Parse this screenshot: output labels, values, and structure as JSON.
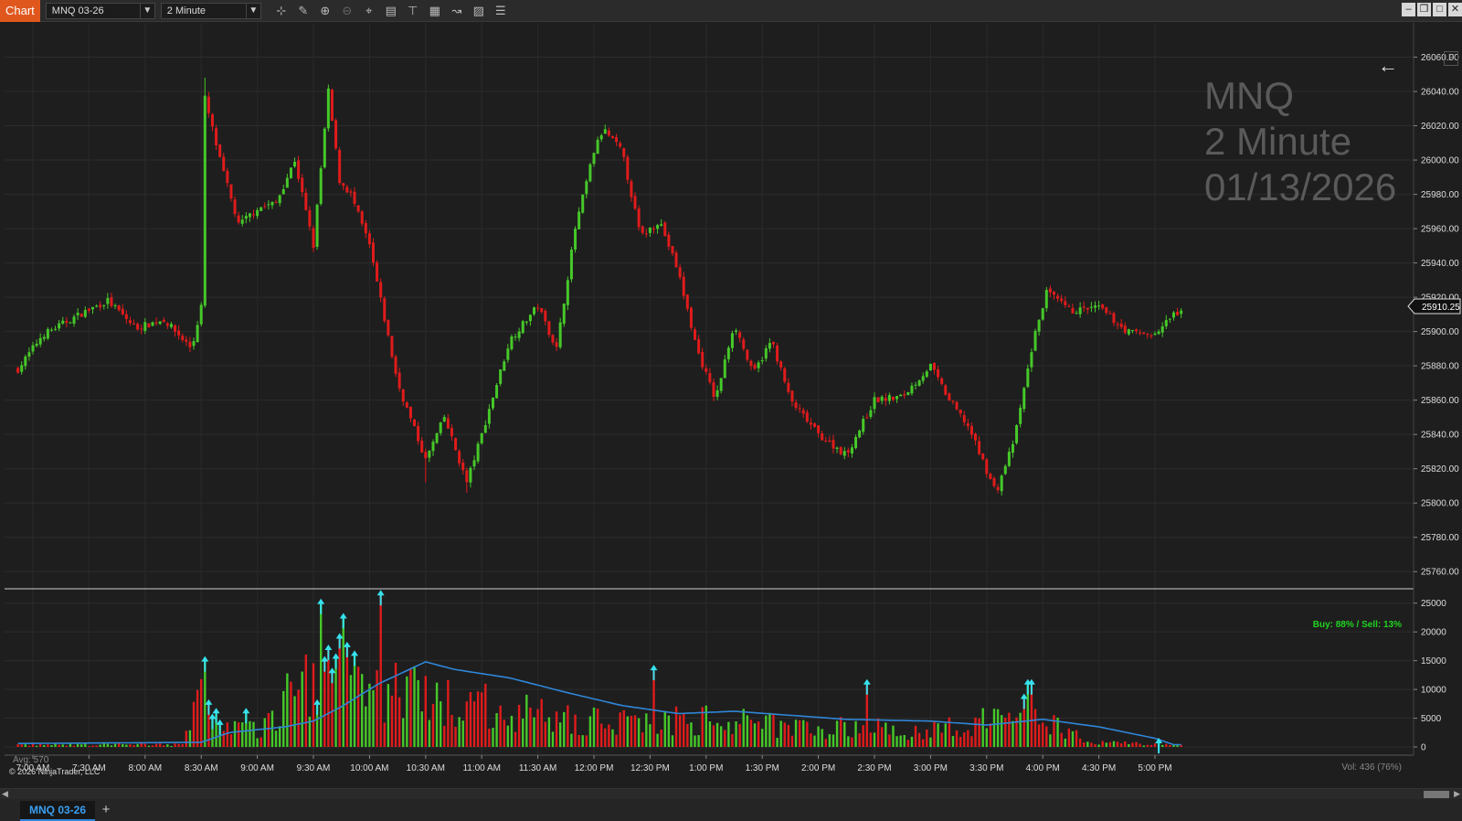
{
  "toolbar": {
    "app_label": "Chart",
    "instrument": "MNQ 03-26",
    "interval": "2 Minute",
    "tools": [
      "bar-type-icon",
      "pencil-icon",
      "zoom-in-icon",
      "zoom-out-icon",
      "crosshair-icon",
      "data-box-icon",
      "properties-icon",
      "strategies-icon",
      "indicators-icon",
      "templates-icon",
      "list-icon"
    ],
    "window_buttons": [
      "minimize",
      "restore",
      "maximize",
      "close"
    ]
  },
  "watermark": {
    "symbol": "MNQ",
    "interval": "2 Minute",
    "date": "01/13/2026"
  },
  "price_panel": {
    "last_price": "25910.25",
    "y_ticks": [
      "26060.00",
      "26040.00",
      "26020.00",
      "26000.00",
      "25980.00",
      "25960.00",
      "25940.00",
      "25920.00",
      "25900.00",
      "25880.00",
      "25860.00",
      "25840.00",
      "25820.00",
      "25800.00",
      "25780.00",
      "25760.00"
    ],
    "f_label": "F"
  },
  "volume_panel": {
    "buy_sell": "Buy: 88% / Sell: 13%",
    "vol": "Vol: 436 (76%)",
    "avg": "Avg: 570",
    "y_ticks": [
      "25000",
      "20000",
      "15000",
      "10000",
      "5000",
      "0"
    ]
  },
  "x_ticks": [
    "7:00 AM",
    "7:30 AM",
    "8:00 AM",
    "8:30 AM",
    "9:00 AM",
    "9:30 AM",
    "10:00 AM",
    "10:30 AM",
    "11:00 AM",
    "11:30 AM",
    "12:00 PM",
    "12:30 PM",
    "1:00 PM",
    "1:30 PM",
    "2:00 PM",
    "2:30 PM",
    "3:00 PM",
    "3:30 PM",
    "4:00 PM",
    "4:30 PM",
    "5:00 PM"
  ],
  "copyright": "© 2026 NinjaTrader, LLC",
  "bottom_tabs": {
    "active": "MNQ 03-26",
    "add": "+"
  },
  "colors": {
    "up": "#46c829",
    "down": "#e01b1b",
    "avg_line": "#2f86d8",
    "arrow": "#35e2ee",
    "accent": "#e0571d"
  },
  "chart_data": {
    "type": "candlestick",
    "interval_minutes": 2,
    "time_range": [
      "6:52 AM",
      "5:14 PM"
    ],
    "price_range": [
      25750,
      26080
    ],
    "volume_range": [
      0,
      27500
    ],
    "close_path": [
      {
        "t": "6:52 AM",
        "p": 25878
      },
      {
        "t": "7:05 AM",
        "p": 25898
      },
      {
        "t": "7:25 AM",
        "p": 25910
      },
      {
        "t": "7:40 AM",
        "p": 25918
      },
      {
        "t": "7:55 AM",
        "p": 25902
      },
      {
        "t": "8:10 AM",
        "p": 25907
      },
      {
        "t": "8:25 AM",
        "p": 25890
      },
      {
        "t": "8:30 AM",
        "p": 25915
      },
      {
        "t": "8:32 AM",
        "p": 26036
      },
      {
        "t": "8:40 AM",
        "p": 26000
      },
      {
        "t": "8:50 AM",
        "p": 25962
      },
      {
        "t": "9:00 AM",
        "p": 25972
      },
      {
        "t": "9:10 AM",
        "p": 25975
      },
      {
        "t": "9:20 AM",
        "p": 26000
      },
      {
        "t": "9:30 AM",
        "p": 25950
      },
      {
        "t": "9:38 AM",
        "p": 26040
      },
      {
        "t": "9:44 AM",
        "p": 25988
      },
      {
        "t": "9:50 AM",
        "p": 25980
      },
      {
        "t": "10:00 AM",
        "p": 25950
      },
      {
        "t": "10:15 AM",
        "p": 25870
      },
      {
        "t": "10:30 AM",
        "p": 25825
      },
      {
        "t": "10:40 AM",
        "p": 25850
      },
      {
        "t": "10:52 AM",
        "p": 25812
      },
      {
        "t": "11:00 AM",
        "p": 25840
      },
      {
        "t": "11:15 AM",
        "p": 25895
      },
      {
        "t": "11:30 AM",
        "p": 25915
      },
      {
        "t": "11:40 AM",
        "p": 25890
      },
      {
        "t": "11:50 AM",
        "p": 25960
      },
      {
        "t": "12:00 PM",
        "p": 26005
      },
      {
        "t": "12:05 PM",
        "p": 26018
      },
      {
        "t": "12:15 PM",
        "p": 26005
      },
      {
        "t": "12:25 PM",
        "p": 25955
      },
      {
        "t": "12:35 PM",
        "p": 25965
      },
      {
        "t": "12:45 PM",
        "p": 25935
      },
      {
        "t": "12:55 PM",
        "p": 25890
      },
      {
        "t": "1:05 PM",
        "p": 25860
      },
      {
        "t": "1:15 PM",
        "p": 25905
      },
      {
        "t": "1:25 PM",
        "p": 25875
      },
      {
        "t": "1:35 PM",
        "p": 25895
      },
      {
        "t": "1:45 PM",
        "p": 25860
      },
      {
        "t": "2:00 PM",
        "p": 25840
      },
      {
        "t": "2:15 PM",
        "p": 25828
      },
      {
        "t": "2:30 PM",
        "p": 25860
      },
      {
        "t": "2:45 PM",
        "p": 25862
      },
      {
        "t": "3:00 PM",
        "p": 25880
      },
      {
        "t": "3:10 PM",
        "p": 25860
      },
      {
        "t": "3:20 PM",
        "p": 25845
      },
      {
        "t": "3:35 PM",
        "p": 25806
      },
      {
        "t": "3:45 PM",
        "p": 25838
      },
      {
        "t": "3:55 PM",
        "p": 25895
      },
      {
        "t": "4:02 PM",
        "p": 25923
      },
      {
        "t": "4:15 PM",
        "p": 25912
      },
      {
        "t": "4:30 PM",
        "p": 25914
      },
      {
        "t": "4:45 PM",
        "p": 25900
      },
      {
        "t": "5:00 PM",
        "p": 25898
      },
      {
        "t": "5:10 PM",
        "p": 25910.25
      }
    ],
    "wicks": [
      {
        "t": "8:32 AM",
        "high": 26048
      },
      {
        "t": "9:38 AM",
        "high": 26044
      },
      {
        "t": "12:05 PM",
        "high": 26025
      },
      {
        "t": "10:30 AM",
        "low": 25812
      },
      {
        "t": "10:52 AM",
        "low": 25806
      },
      {
        "t": "3:35 PM",
        "low": 25803
      },
      {
        "t": "4:02 PM",
        "high": 25926
      }
    ],
    "volume_profile": [
      {
        "t": "6:52 AM",
        "v": 400
      },
      {
        "t": "8:20 AM",
        "v": 500
      },
      {
        "t": "8:30 AM",
        "v": 9000
      },
      {
        "t": "8:40 AM",
        "v": 4000
      },
      {
        "t": "9:00 AM",
        "v": 3000
      },
      {
        "t": "9:30 AM",
        "v": 14000
      },
      {
        "t": "9:45 AM",
        "v": 12000
      },
      {
        "t": "10:00 AM",
        "v": 10000
      },
      {
        "t": "10:15 AM",
        "v": 11000
      },
      {
        "t": "10:30 AM",
        "v": 9000
      },
      {
        "t": "11:00 AM",
        "v": 8000
      },
      {
        "t": "11:30 AM",
        "v": 6000
      },
      {
        "t": "12:00 PM",
        "v": 5000
      },
      {
        "t": "1:00 PM",
        "v": 5000
      },
      {
        "t": "2:00 PM",
        "v": 4000
      },
      {
        "t": "3:00 PM",
        "v": 3000
      },
      {
        "t": "3:45 PM",
        "v": 6000
      },
      {
        "t": "4:00 PM",
        "v": 5000
      },
      {
        "t": "4:30 PM",
        "v": 1000
      },
      {
        "t": "5:10 PM",
        "v": 300
      }
    ],
    "volume_avg": [
      {
        "t": "6:52 AM",
        "v": 600
      },
      {
        "t": "8:30 AM",
        "v": 800
      },
      {
        "t": "8:45 AM",
        "v": 2500
      },
      {
        "t": "9:15 AM",
        "v": 3500
      },
      {
        "t": "9:30 AM",
        "v": 4500
      },
      {
        "t": "9:45 AM",
        "v": 7000
      },
      {
        "t": "10:05 AM",
        "v": 11000
      },
      {
        "t": "10:30 AM",
        "v": 14800
      },
      {
        "t": "10:45 AM",
        "v": 13500
      },
      {
        "t": "11:15 AM",
        "v": 12000
      },
      {
        "t": "11:45 AM",
        "v": 9500
      },
      {
        "t": "12:15 PM",
        "v": 7200
      },
      {
        "t": "12:45 PM",
        "v": 5800
      },
      {
        "t": "1:15 PM",
        "v": 6200
      },
      {
        "t": "1:45 PM",
        "v": 5500
      },
      {
        "t": "2:15 PM",
        "v": 4800
      },
      {
        "t": "3:00 PM",
        "v": 4500
      },
      {
        "t": "3:30 PM",
        "v": 3800
      },
      {
        "t": "4:00 PM",
        "v": 4800
      },
      {
        "t": "4:30 PM",
        "v": 3500
      },
      {
        "t": "5:00 PM",
        "v": 1500
      },
      {
        "t": "5:10 PM",
        "v": 400
      }
    ],
    "volume_spikes": [
      {
        "t": "8:32 AM",
        "v": 15000
      },
      {
        "t": "8:34 AM",
        "v": 7500
      },
      {
        "t": "8:36 AM",
        "v": 5000
      },
      {
        "t": "8:38 AM",
        "v": 6000
      },
      {
        "t": "8:40 AM",
        "v": 4000
      },
      {
        "t": "8:54 AM",
        "v": 6000
      },
      {
        "t": "9:32 AM",
        "v": 7500
      },
      {
        "t": "9:34 AM",
        "v": 25000
      },
      {
        "t": "9:36 AM",
        "v": 15000
      },
      {
        "t": "9:38 AM",
        "v": 17000
      },
      {
        "t": "9:40 AM",
        "v": 13000
      },
      {
        "t": "9:42 AM",
        "v": 15500
      },
      {
        "t": "9:44 AM",
        "v": 19000
      },
      {
        "t": "9:46 AM",
        "v": 22500
      },
      {
        "t": "9:48 AM",
        "v": 17500
      },
      {
        "t": "9:52 AM",
        "v": 16000
      },
      {
        "t": "10:06 AM",
        "v": 26500
      },
      {
        "t": "12:32 PM",
        "v": 13500
      },
      {
        "t": "2:26 PM",
        "v": 11000
      },
      {
        "t": "3:50 PM",
        "v": 8500
      },
      {
        "t": "3:52 PM",
        "v": 11000
      },
      {
        "t": "3:54 PM",
        "v": 11000
      },
      {
        "t": "5:02 PM",
        "v": 800
      }
    ]
  }
}
